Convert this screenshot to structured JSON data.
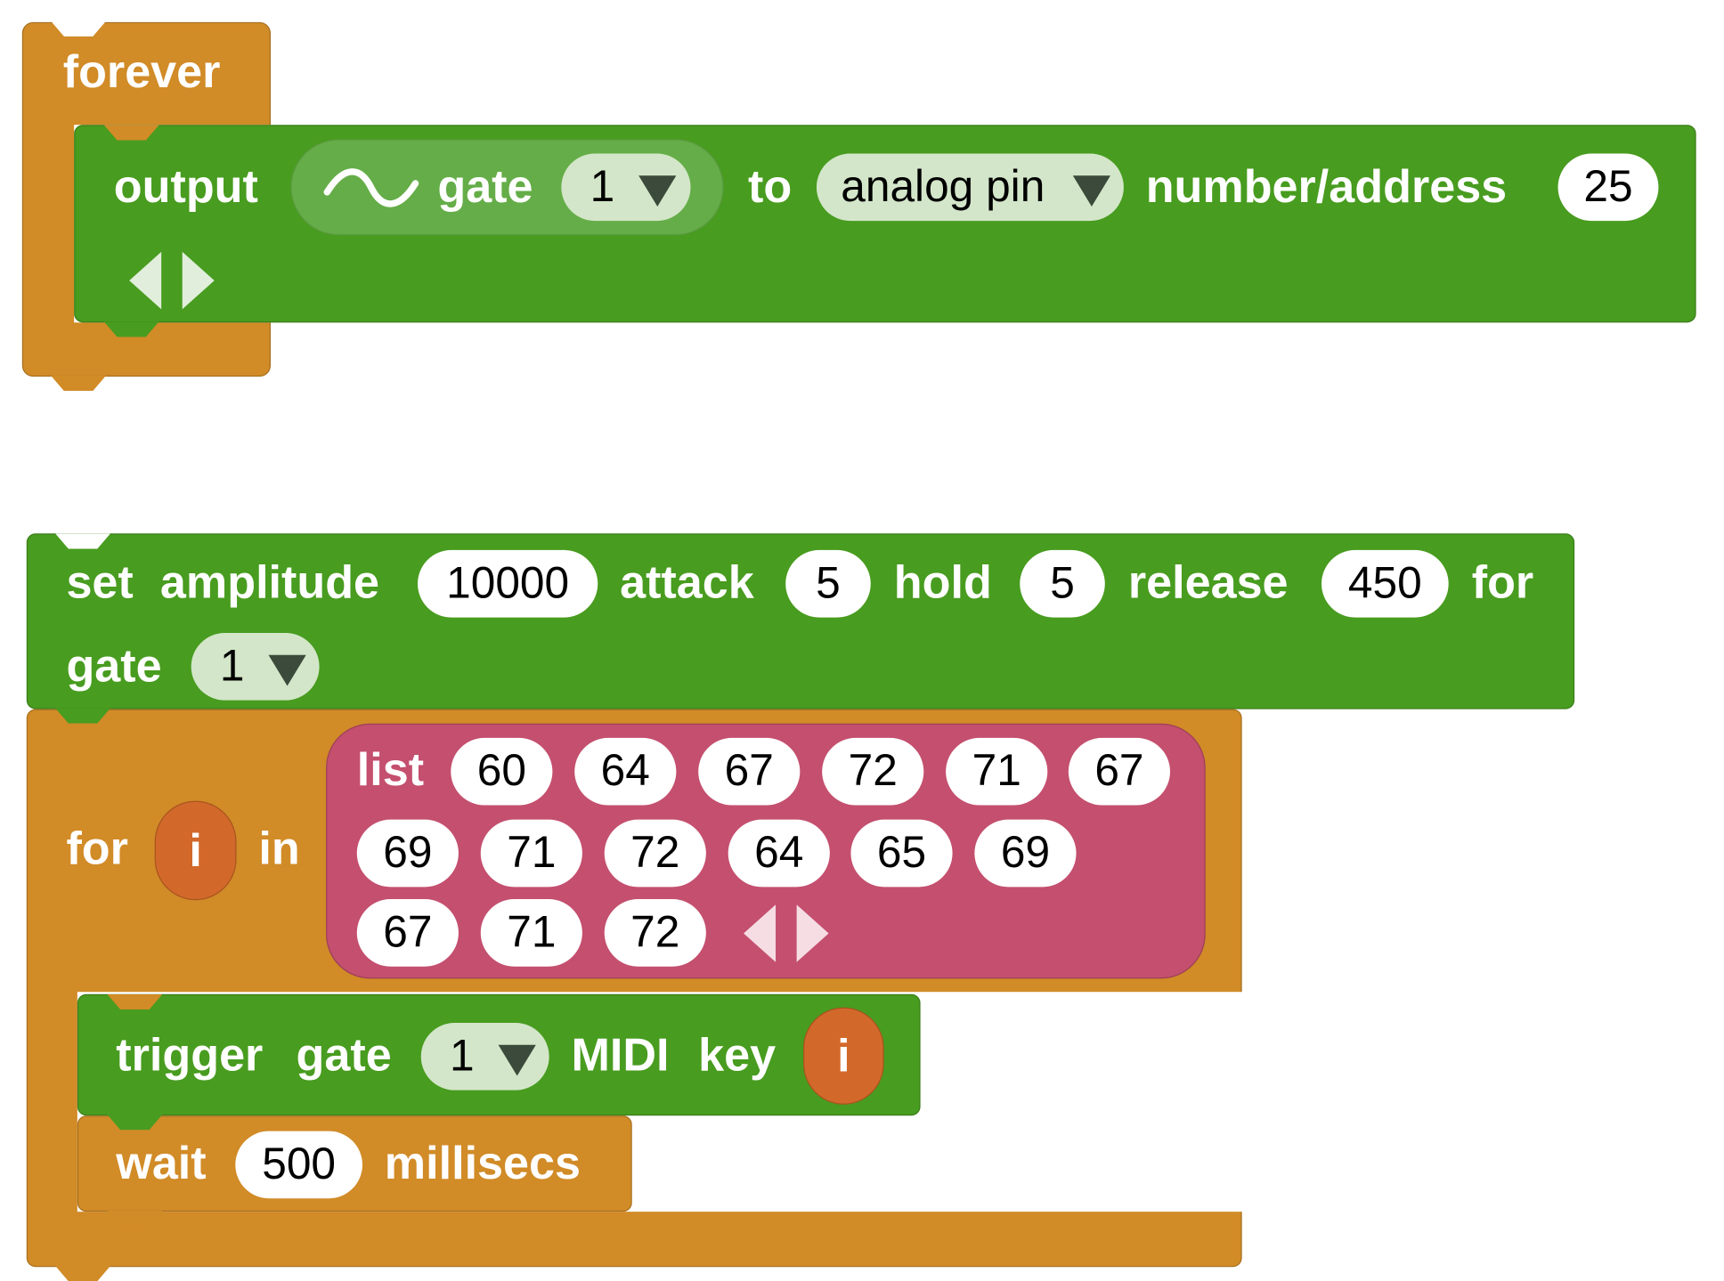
{
  "colors": {
    "control": "#d18b27",
    "audio": "#489c1f",
    "list": "#c44f6e",
    "variable": "#d2692b"
  },
  "forever": {
    "label": "forever"
  },
  "output": {
    "label": "output",
    "icon": "sine-wave-icon",
    "gate_label": "gate",
    "gate_value": "1",
    "to_label": "to",
    "pin_type": "analog pin",
    "address_label": "number/address",
    "address_value": "25"
  },
  "set_amplitude": {
    "set_label": "set",
    "amplitude_label": "amplitude",
    "amplitude": "10000",
    "attack_label": "attack",
    "attack": "5",
    "hold_label": "hold",
    "hold": "5",
    "release_label": "release",
    "release": "450",
    "for_label": "for",
    "gate_label": "gate",
    "gate_value": "1"
  },
  "for_loop": {
    "for_label": "for",
    "variable": "i",
    "in_label": "in"
  },
  "list": {
    "label": "list",
    "items": [
      "60",
      "64",
      "67",
      "72",
      "71",
      "67",
      "69",
      "71",
      "72",
      "64",
      "65",
      "69",
      "67",
      "71",
      "72"
    ]
  },
  "trigger": {
    "trigger_label": "trigger",
    "gate_label": "gate",
    "gate_value": "1",
    "midi_label": "MIDI",
    "key_label": "key",
    "key_variable": "i"
  },
  "wait": {
    "label": "wait",
    "value": "500",
    "unit_label": "millisecs"
  }
}
